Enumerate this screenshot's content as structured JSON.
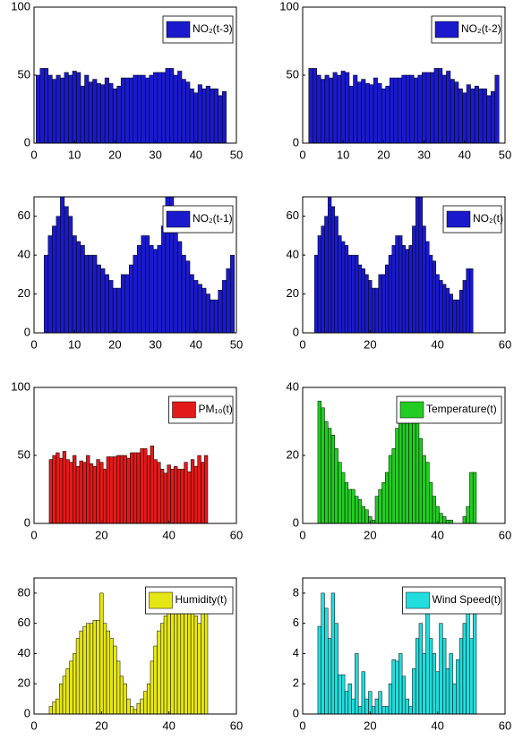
{
  "chart_data": [
    {
      "type": "bar",
      "x": [
        1,
        2,
        3,
        4,
        5,
        6,
        7,
        8,
        9,
        10,
        11,
        12,
        13,
        14,
        15,
        16,
        17,
        18,
        19,
        20,
        21,
        22,
        23,
        24,
        25,
        26,
        27,
        28,
        29,
        30,
        31,
        32,
        33,
        34,
        35,
        36,
        37,
        38,
        39,
        40,
        41,
        42,
        43,
        44,
        45,
        46,
        47
      ],
      "series": [
        {
          "name": "NO₂(t-3)",
          "color": "#1a1acc",
          "values": [
            50,
            55,
            55,
            50,
            47,
            50,
            48,
            52,
            50,
            53,
            52,
            42,
            50,
            45,
            47,
            44,
            43,
            48,
            44,
            40,
            42,
            48,
            48,
            48,
            50,
            50,
            50,
            48,
            50,
            52,
            52,
            52,
            55,
            55,
            50,
            53,
            47,
            45,
            40,
            37,
            43,
            40,
            42,
            40,
            40,
            35,
            38
          ]
        }
      ],
      "xlim": [
        0,
        50
      ],
      "ylim": [
        0,
        100
      ],
      "xticks": [
        0,
        10,
        20,
        30,
        40,
        50
      ],
      "yticks": [
        0,
        50,
        100
      ]
    },
    {
      "type": "bar",
      "x": [
        2,
        3,
        4,
        5,
        6,
        7,
        8,
        9,
        10,
        11,
        12,
        13,
        14,
        15,
        16,
        17,
        18,
        19,
        20,
        21,
        22,
        23,
        24,
        25,
        26,
        27,
        28,
        29,
        30,
        31,
        32,
        33,
        34,
        35,
        36,
        37,
        38,
        39,
        40,
        41,
        42,
        43,
        44,
        45,
        46,
        47,
        48
      ],
      "series": [
        {
          "name": "NO₂(t-2)",
          "color": "#1a1acc",
          "values": [
            55,
            55,
            50,
            47,
            50,
            48,
            52,
            50,
            53,
            52,
            42,
            50,
            45,
            47,
            44,
            43,
            48,
            44,
            40,
            42,
            48,
            48,
            48,
            50,
            50,
            50,
            48,
            50,
            52,
            52,
            52,
            55,
            55,
            50,
            53,
            47,
            45,
            40,
            37,
            43,
            40,
            42,
            40,
            40,
            35,
            38,
            50
          ]
        }
      ],
      "xlim": [
        0,
        50
      ],
      "ylim": [
        0,
        100
      ],
      "xticks": [
        0,
        10,
        20,
        30,
        40,
        50
      ],
      "yticks": [
        0,
        50,
        100
      ]
    },
    {
      "type": "bar",
      "x": [
        3,
        4,
        5,
        6,
        7,
        8,
        9,
        10,
        11,
        12,
        13,
        14,
        15,
        16,
        17,
        18,
        19,
        20,
        21,
        22,
        23,
        24,
        25,
        26,
        27,
        28,
        29,
        30,
        31,
        32,
        33,
        34,
        35,
        36,
        37,
        38,
        39,
        40,
        41,
        42,
        43,
        44,
        45,
        46,
        47,
        48,
        49
      ],
      "series": [
        {
          "name": "NO₂(t-1)",
          "color": "#1a1acc",
          "values": [
            40,
            50,
            55,
            60,
            70,
            65,
            60,
            50,
            47,
            45,
            40,
            40,
            40,
            35,
            33,
            30,
            27,
            23,
            23,
            30,
            30,
            35,
            40,
            45,
            50,
            50,
            45,
            43,
            45,
            55,
            70,
            70,
            55,
            47,
            40,
            37,
            30,
            27,
            25,
            23,
            20,
            17,
            17,
            22,
            27,
            33,
            40
          ]
        }
      ],
      "xlim": [
        0,
        50
      ],
      "ylim": [
        0,
        70
      ],
      "xticks": [
        0,
        10,
        20,
        30,
        40,
        50
      ],
      "yticks": [
        0,
        20,
        40,
        60
      ]
    },
    {
      "type": "bar",
      "x": [
        4,
        5,
        6,
        7,
        8,
        9,
        10,
        11,
        12,
        13,
        14,
        15,
        16,
        17,
        18,
        19,
        20,
        21,
        22,
        23,
        24,
        25,
        26,
        27,
        28,
        29,
        30,
        31,
        32,
        33,
        34,
        35,
        36,
        37,
        38,
        39,
        40,
        41,
        42,
        43,
        44,
        45,
        46,
        47,
        48,
        49,
        50
      ],
      "series": [
        {
          "name": "NO₂(t)",
          "color": "#1a1acc",
          "values": [
            40,
            50,
            55,
            60,
            70,
            65,
            60,
            50,
            47,
            45,
            40,
            40,
            40,
            35,
            33,
            30,
            27,
            23,
            23,
            30,
            30,
            35,
            40,
            45,
            50,
            50,
            45,
            43,
            45,
            55,
            70,
            70,
            55,
            47,
            40,
            37,
            30,
            27,
            25,
            23,
            20,
            17,
            17,
            22,
            27,
            33,
            33
          ]
        }
      ],
      "xlim": [
        0,
        60
      ],
      "ylim": [
        0,
        70
      ],
      "xticks": [
        0,
        20,
        40,
        60
      ],
      "yticks": [
        0,
        20,
        40,
        60
      ]
    },
    {
      "type": "bar",
      "x": [
        5,
        6,
        7,
        8,
        9,
        10,
        11,
        12,
        13,
        14,
        15,
        16,
        17,
        18,
        19,
        20,
        21,
        22,
        23,
        24,
        25,
        26,
        27,
        28,
        29,
        30,
        31,
        32,
        33,
        34,
        35,
        36,
        37,
        38,
        39,
        40,
        41,
        42,
        43,
        44,
        45,
        46,
        47,
        48,
        49,
        50,
        51
      ],
      "series": [
        {
          "name": "PM₁₀(t)",
          "color": "#e31a1a",
          "values": [
            47,
            50,
            52,
            48,
            53,
            47,
            45,
            50,
            42,
            46,
            45,
            50,
            44,
            42,
            47,
            45,
            40,
            49,
            49,
            49,
            50,
            50,
            50,
            48,
            52,
            52,
            52,
            55,
            55,
            50,
            57,
            47,
            45,
            40,
            37,
            43,
            40,
            42,
            40,
            40,
            45,
            38,
            47,
            42,
            50,
            45,
            50
          ]
        }
      ],
      "xlim": [
        0,
        60
      ],
      "ylim": [
        0,
        100
      ],
      "xticks": [
        0,
        20,
        40,
        60
      ],
      "yticks": [
        0,
        50,
        100
      ]
    },
    {
      "type": "bar",
      "x": [
        5,
        6,
        7,
        8,
        9,
        10,
        11,
        12,
        13,
        14,
        15,
        16,
        17,
        18,
        19,
        20,
        21,
        22,
        23,
        24,
        25,
        26,
        27,
        28,
        29,
        30,
        31,
        32,
        33,
        34,
        35,
        36,
        37,
        38,
        39,
        40,
        41,
        42,
        43,
        44,
        45,
        46,
        47,
        48,
        49,
        50,
        51
      ],
      "series": [
        {
          "name": "Temperature(t)",
          "color": "#22cc22",
          "values": [
            36,
            34,
            30,
            28,
            26,
            22,
            18,
            15,
            12,
            10,
            10,
            8,
            7,
            5,
            4,
            2,
            1,
            8,
            10,
            12,
            15,
            20,
            22,
            28,
            30,
            33,
            35,
            35,
            33,
            30,
            25,
            20,
            18,
            12,
            8,
            5,
            3,
            2,
            1,
            1,
            0,
            0,
            0,
            2,
            5,
            15,
            15
          ]
        }
      ],
      "xlim": [
        0,
        60
      ],
      "ylim": [
        0,
        40
      ],
      "xticks": [
        0,
        20,
        40,
        60
      ],
      "yticks": [
        0,
        20,
        40
      ]
    },
    {
      "type": "bar",
      "x": [
        5,
        6,
        7,
        8,
        9,
        10,
        11,
        12,
        13,
        14,
        15,
        16,
        17,
        18,
        19,
        20,
        21,
        22,
        23,
        24,
        25,
        26,
        27,
        28,
        29,
        30,
        31,
        32,
        33,
        34,
        35,
        36,
        37,
        38,
        39,
        40,
        41,
        42,
        43,
        44,
        45,
        46,
        47,
        48,
        49,
        50,
        51
      ],
      "series": [
        {
          "name": "Humidity(t)",
          "color": "#e6e614",
          "values": [
            5,
            8,
            10,
            20,
            25,
            30,
            35,
            40,
            50,
            55,
            58,
            60,
            60,
            62,
            62,
            80,
            60,
            55,
            50,
            45,
            35,
            25,
            20,
            10,
            5,
            3,
            7,
            10,
            15,
            20,
            35,
            45,
            55,
            60,
            65,
            70,
            75,
            78,
            80,
            80,
            78,
            75,
            70,
            65,
            60,
            68,
            68
          ]
        }
      ],
      "xlim": [
        0,
        60
      ],
      "ylim": [
        0,
        90
      ],
      "xticks": [
        0,
        20,
        40,
        60
      ],
      "yticks": [
        0,
        20,
        40,
        60,
        80
      ]
    },
    {
      "type": "bar",
      "x": [
        5,
        6,
        7,
        8,
        9,
        10,
        11,
        12,
        13,
        14,
        15,
        16,
        17,
        18,
        19,
        20,
        21,
        22,
        23,
        24,
        25,
        26,
        27,
        28,
        29,
        30,
        31,
        32,
        33,
        34,
        35,
        36,
        37,
        38,
        39,
        40,
        41,
        42,
        43,
        44,
        45,
        46,
        47,
        48,
        49,
        50,
        51
      ],
      "series": [
        {
          "name": "Wind Speed(t)",
          "color": "#22dddd",
          "values": [
            5.8,
            8,
            7,
            5,
            8,
            6,
            2.6,
            2.6,
            1.5,
            2,
            1,
            4,
            0.5,
            2.8,
            1,
            1.5,
            0.5,
            1,
            1.5,
            0.5,
            0.5,
            2,
            3.6,
            3.5,
            4,
            2.5,
            1,
            0.5,
            3,
            5,
            6,
            4,
            7,
            5,
            4,
            2.8,
            6,
            5,
            3,
            4,
            2,
            3.6,
            5,
            6,
            7.5,
            5,
            8
          ]
        }
      ],
      "xlim": [
        0,
        60
      ],
      "ylim": [
        0,
        9
      ],
      "xticks": [
        0,
        20,
        40,
        60
      ],
      "yticks": [
        0,
        2,
        4,
        6,
        8
      ]
    }
  ]
}
